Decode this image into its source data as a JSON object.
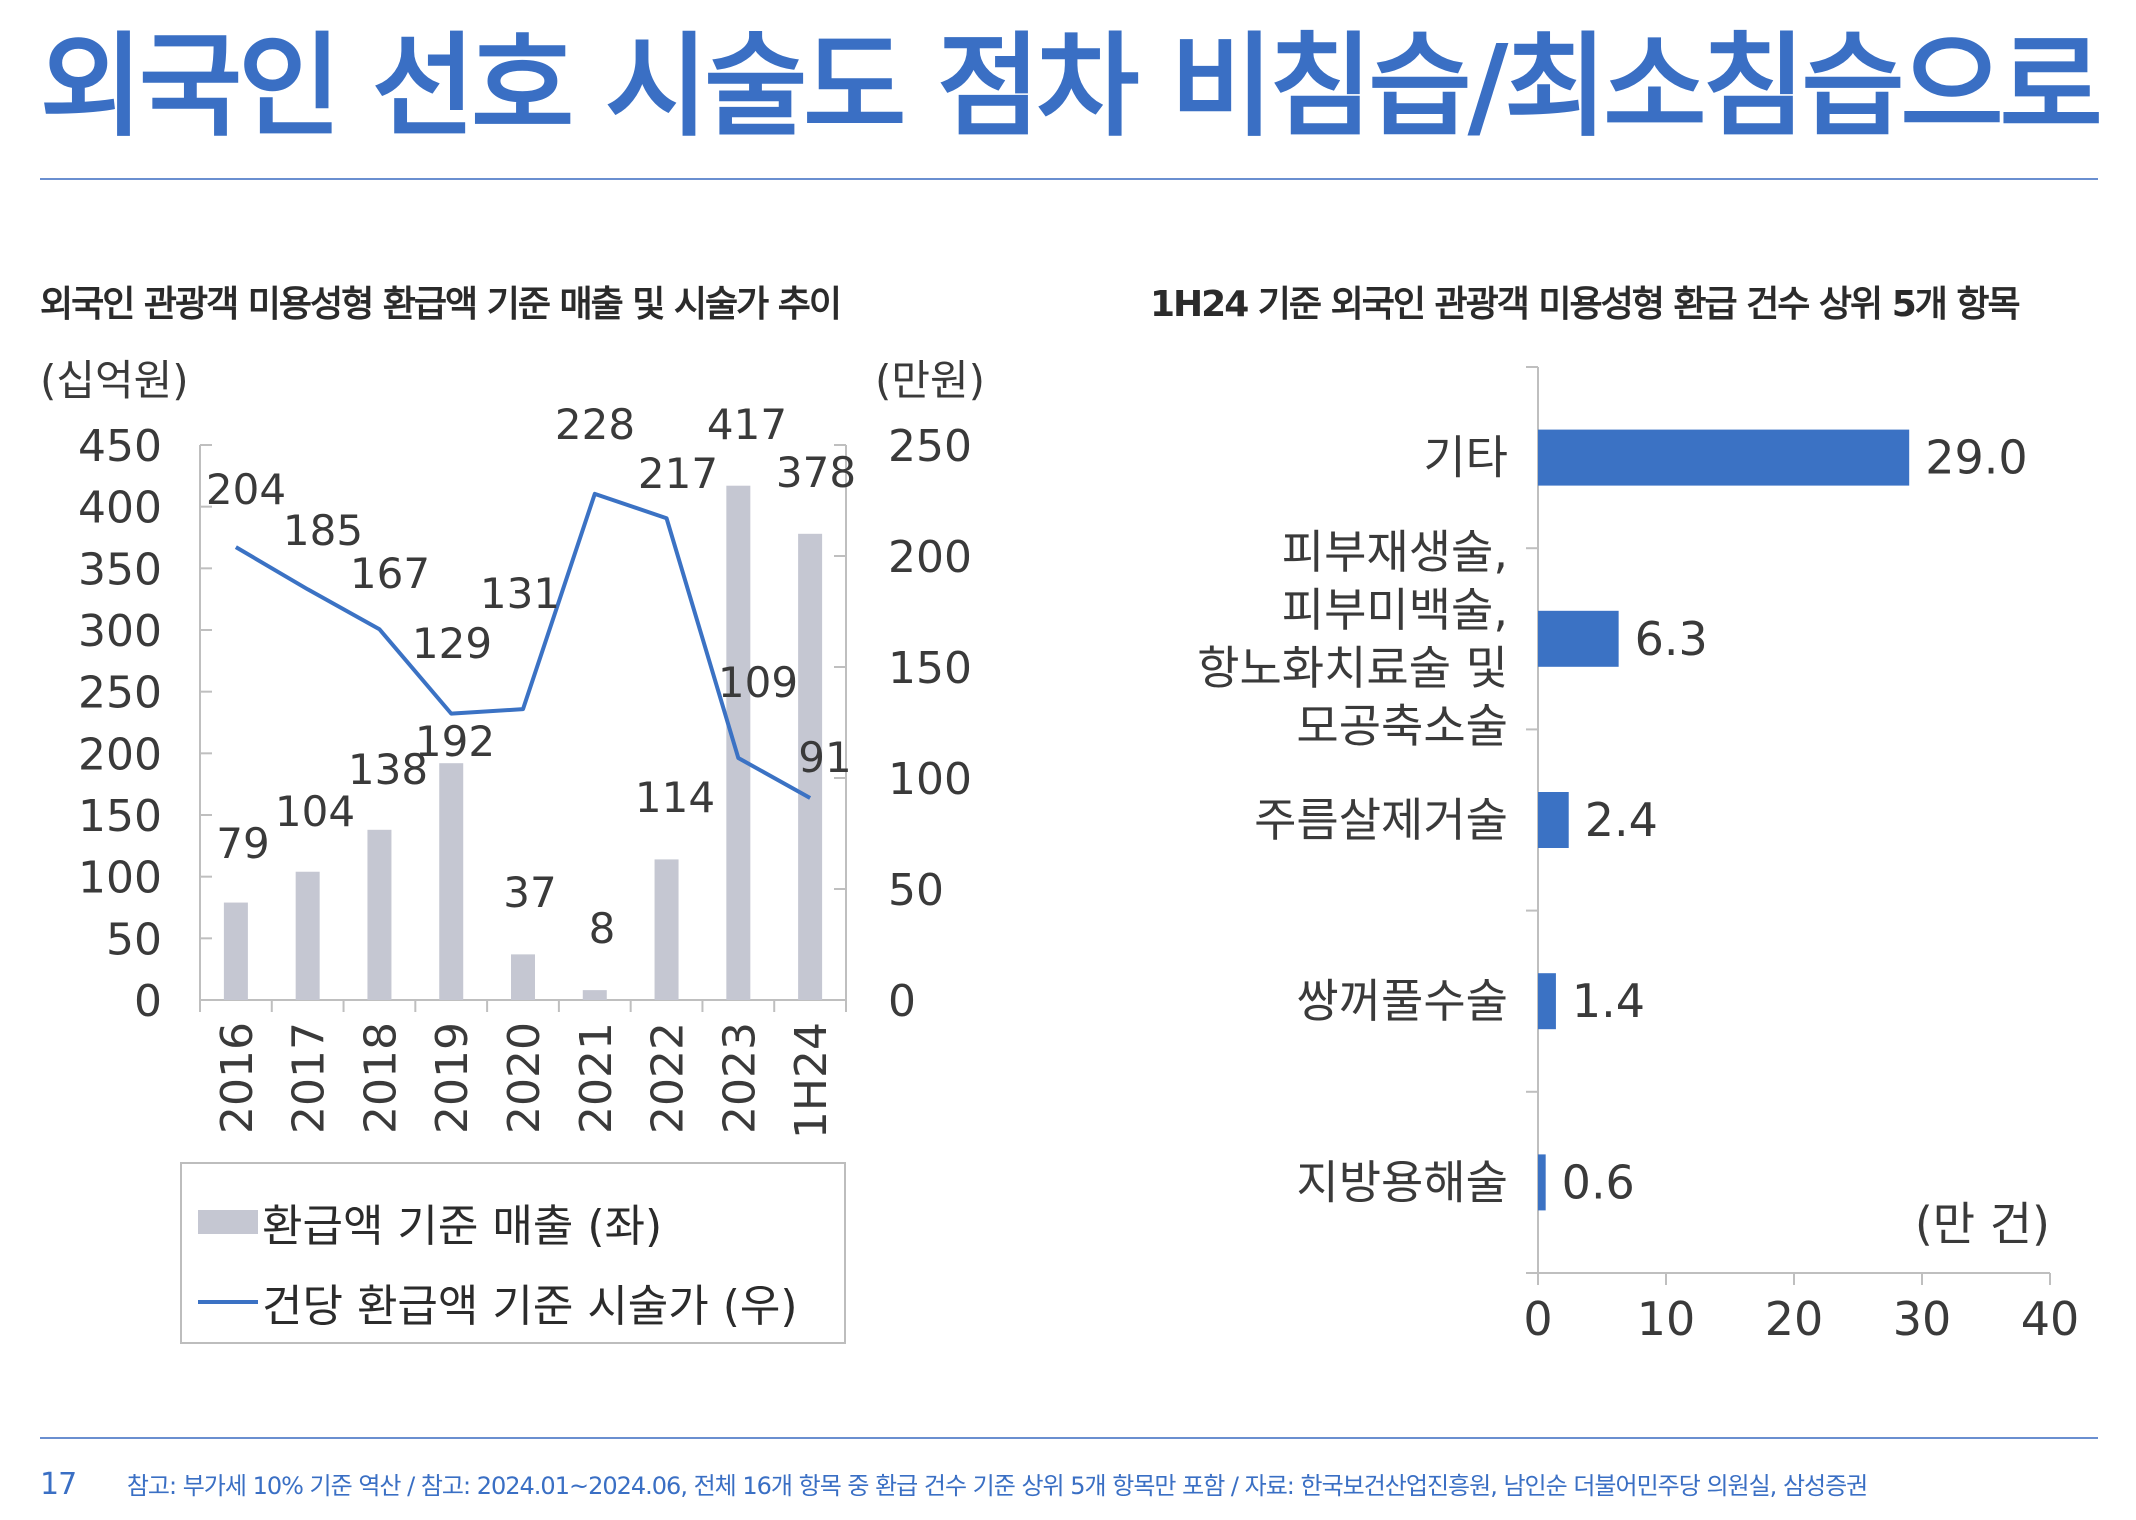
{
  "page": {
    "title": "외국인 선호 시술도 점차 비침습/최소침습으로",
    "page_number": "17",
    "footnote": "참고: 부가세 10% 기준 역산 / 참고: 2024.01~2024.06, 전체 16개 항목 중 환급 건수 기준 상위 5개 항목만 포함 / 자료: 한국보건산업진흥원, 남인순 더불어민주당 의원실, 삼성증권"
  },
  "colors": {
    "title": "#3a6fc4",
    "bar_gray": "#c5c7d2",
    "line_blue": "#3b72c4",
    "bar_blue": "#3b72c4",
    "axis": "#bfbfbf",
    "text": "#3a3a3a"
  },
  "chart_data": [
    {
      "type": "bar+line",
      "title": "외국인 관광객 미용성형 환급액 기준 매출 및 시술가 추이",
      "left_unit": "(십억원)",
      "right_unit": "(만원)",
      "categories": [
        "2016",
        "2017",
        "2018",
        "2019",
        "2020",
        "2021",
        "2022",
        "2023",
        "1H24"
      ],
      "series": [
        {
          "name": "환급액 기준 매출 (좌)",
          "type": "bar",
          "axis": "left",
          "values": [
            79,
            104,
            138,
            192,
            37,
            8,
            114,
            417,
            378
          ]
        },
        {
          "name": "건당 환급액 기준 시술가 (우)",
          "type": "line",
          "axis": "right",
          "values": [
            204,
            185,
            167,
            129,
            131,
            228,
            217,
            109,
            91
          ]
        }
      ],
      "left_ylim": [
        0,
        450
      ],
      "left_ticks": [
        0,
        50,
        100,
        150,
        200,
        250,
        300,
        350,
        400,
        450
      ],
      "right_ylim": [
        0,
        250
      ],
      "right_ticks": [
        0,
        50,
        100,
        150,
        200,
        250
      ],
      "legend_position": "bottom"
    },
    {
      "type": "bar",
      "orientation": "horizontal",
      "title": "1H24 기준 외국인 관광객 미용성형 환급 건수 상위 5개 항목",
      "unit": "(만 건)",
      "categories": [
        [
          "기타"
        ],
        [
          "피부재생술,",
          "피부미백술,",
          "항노화치료술 및",
          "모공축소술"
        ],
        [
          "주름살제거술"
        ],
        [
          "쌍꺼풀수술"
        ],
        [
          "지방용해술"
        ]
      ],
      "values": [
        29.0,
        6.3,
        2.4,
        1.4,
        0.6
      ],
      "value_labels": [
        "29.0",
        "6.3",
        "2.4",
        "1.4",
        "0.6"
      ],
      "xlim": [
        0,
        40
      ],
      "x_ticks": [
        0,
        10,
        20,
        30,
        40
      ]
    }
  ]
}
